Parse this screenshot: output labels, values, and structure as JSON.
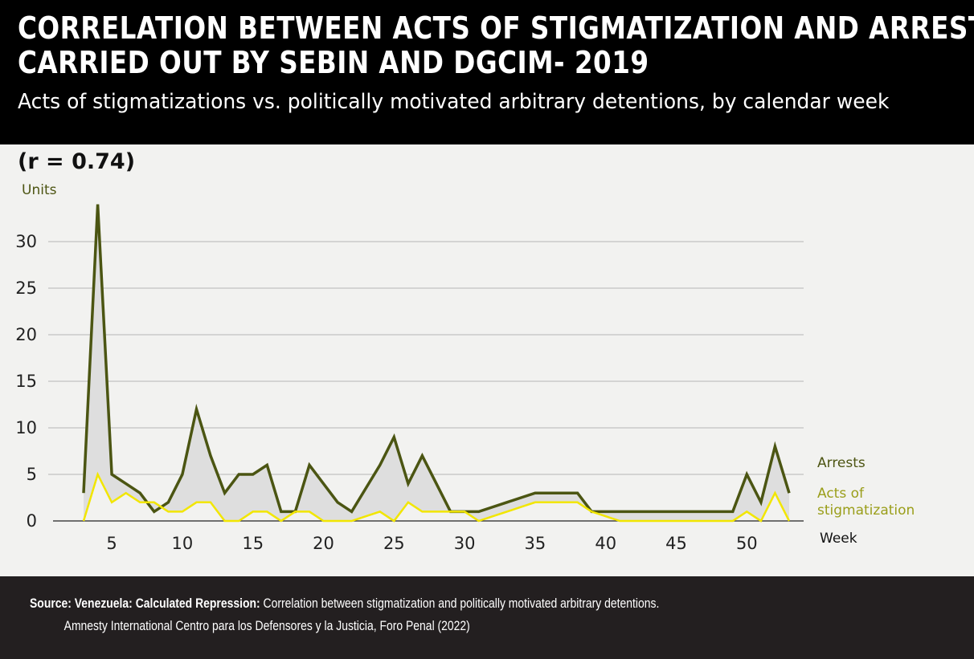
{
  "header": {
    "title_line1": "CORRELATION BETWEEN ACTS OF STIGMATIZATION AND ARRESTS",
    "title_line2": "CARRIED OUT BY SEBIN AND DGCIM- 2019",
    "subtitle": "Acts of stigmatizations vs. politically motivated arbitrary detentions, by calendar week"
  },
  "annotation": {
    "correlation": "(r = 0.74)",
    "y_unit": "Units"
  },
  "colors": {
    "arrests": "#4b5512",
    "stigmatization": "#f2e600",
    "fill": "#dedede",
    "grid": "#c9c9c9"
  },
  "chart_data": {
    "type": "line",
    "xlabel": "Week",
    "ylabel": "Units",
    "xlim": [
      3,
      53
    ],
    "ylim": [
      0,
      34
    ],
    "x_ticks": [
      5,
      10,
      15,
      20,
      25,
      30,
      35,
      40,
      45,
      50
    ],
    "y_ticks": [
      0,
      5,
      10,
      15,
      20,
      25,
      30
    ],
    "grid": true,
    "legend_position": "right",
    "x": [
      3,
      4,
      5,
      6,
      7,
      8,
      9,
      10,
      11,
      12,
      13,
      14,
      15,
      16,
      17,
      18,
      19,
      20,
      21,
      22,
      23,
      24,
      25,
      26,
      27,
      28,
      29,
      30,
      31,
      32,
      33,
      34,
      35,
      36,
      37,
      38,
      39,
      40,
      41,
      42,
      43,
      44,
      45,
      46,
      47,
      48,
      49,
      50,
      51,
      52,
      53
    ],
    "series": [
      {
        "name": "Arrests",
        "values": [
          3,
          34,
          5,
          4,
          3,
          1,
          2,
          5,
          12,
          7,
          3,
          5,
          5,
          6,
          1,
          1,
          6,
          4,
          2,
          1,
          3.5,
          6,
          9,
          4,
          7,
          4,
          1,
          1,
          1,
          1.5,
          2,
          2.5,
          3,
          3,
          3,
          3,
          1,
          1,
          1,
          1,
          1,
          1,
          1,
          1,
          1,
          1,
          1,
          5,
          2,
          8,
          3
        ]
      },
      {
        "name": "Acts of stigmatization",
        "values": [
          0,
          5,
          2,
          3,
          2,
          2,
          1,
          1,
          2,
          2,
          0,
          0,
          1,
          1,
          0,
          1,
          1,
          0,
          0,
          0,
          0.5,
          1,
          0,
          2,
          1,
          1,
          1,
          1,
          0,
          0.5,
          1,
          1.5,
          2,
          2,
          2,
          2,
          1,
          0.5,
          0,
          0,
          0,
          0,
          0,
          0,
          0,
          0,
          0,
          1,
          0,
          3,
          0
        ]
      }
    ]
  },
  "footer": {
    "source_lead": "Source: Venezuela: Calculated Repression:",
    "source_text": " Correlation between stigmatization and politically motivated arbitrary detentions.",
    "source_line2": "Amnesty International Centro para los Defensores y la Justicia, Foro Penal (2022)"
  }
}
